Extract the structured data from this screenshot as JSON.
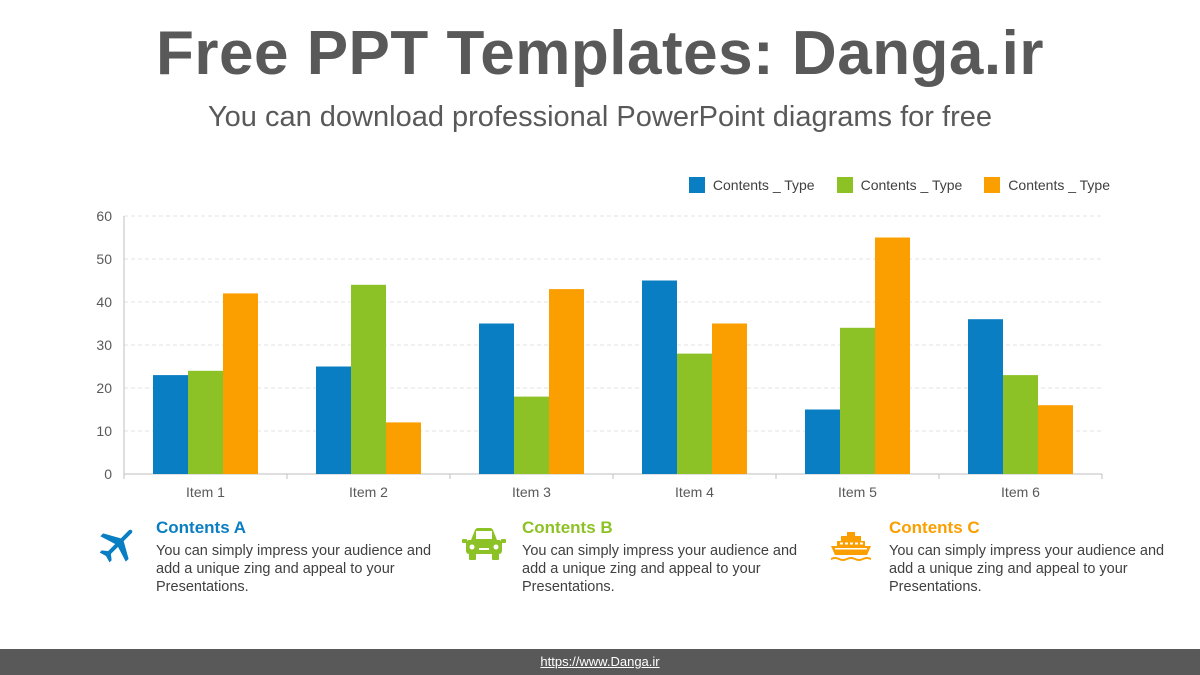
{
  "header": {
    "title": "Free PPT Templates: Danga.ir",
    "subtitle": "You can download professional PowerPoint diagrams for free"
  },
  "chart_data": {
    "type": "bar",
    "categories": [
      "Item 1",
      "Item 2",
      "Item 3",
      "Item 4",
      "Item 5",
      "Item 6"
    ],
    "series": [
      {
        "name": "Contents _ Type",
        "color": "#0a7ec2",
        "values": [
          23,
          25,
          35,
          45,
          15,
          36
        ]
      },
      {
        "name": "Contents _ Type",
        "color": "#8dc226",
        "values": [
          24,
          44,
          18,
          28,
          34,
          23
        ]
      },
      {
        "name": "Contents _ Type",
        "color": "#fb9f00",
        "values": [
          42,
          12,
          43,
          35,
          55,
          16
        ]
      }
    ],
    "ylim": [
      0,
      60
    ],
    "yticks": [
      0,
      10,
      20,
      30,
      40,
      50,
      60
    ],
    "grid": true,
    "legend": "top-right"
  },
  "features": [
    {
      "title": "Contents A",
      "text": "You can simply impress your audience and add a unique zing and appeal to your Presentations.",
      "color": "#0a7ec2",
      "icon": "airplane-icon"
    },
    {
      "title": "Contents B",
      "text": "You can simply impress your audience and add a unique zing and appeal to your Presentations.",
      "color": "#8dc226",
      "icon": "car-icon"
    },
    {
      "title": "Contents C",
      "text": "You can simply impress your audience and add a unique zing and appeal to your Presentations.",
      "color": "#fb9f00",
      "icon": "ship-icon"
    }
  ],
  "footer": {
    "link": "https://www.Danga.ir"
  }
}
